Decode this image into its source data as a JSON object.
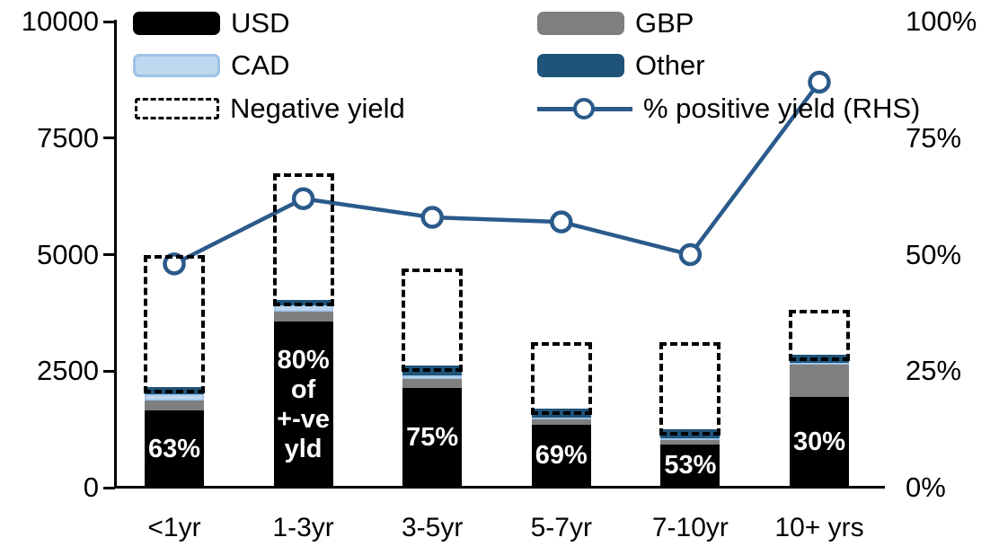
{
  "chart_data": {
    "type": "bar",
    "subtype": "stacked-bars-with-dashed-overlay-and-line",
    "title": "",
    "categories": [
      "<1yr",
      "1-3yr",
      "3-5yr",
      "5-7yr",
      "7-10yr",
      "10+ yrs"
    ],
    "series": [
      {
        "name": "USD",
        "color": "#000000",
        "values": [
          1650,
          3560,
          2140,
          1350,
          930,
          1950
        ]
      },
      {
        "name": "GBP",
        "color": "#7F7F7F",
        "values": [
          210,
          210,
          190,
          120,
          100,
          690
        ]
      },
      {
        "name": "CAD",
        "color": "#BDD7EE",
        "border_color": "#9DC3E6",
        "values": [
          140,
          140,
          80,
          30,
          30,
          40
        ]
      },
      {
        "name": "Other",
        "color": "#1F5379",
        "values": [
          150,
          120,
          210,
          190,
          190,
          180
        ]
      }
    ],
    "negative_yield": {
      "name": "Negative yield",
      "style": "dashed-outline",
      "totals": [
        5000,
        6750,
        4700,
        3120,
        3120,
        3820
      ]
    },
    "line_series": {
      "name": "% positive yield (RHS)",
      "color": "#2A5A8A",
      "marker": "open-circle",
      "values_pct": [
        48,
        62,
        58,
        57,
        50,
        87
      ]
    },
    "bar_labels": [
      "63%",
      "80%\nof\n+-ve\nyld",
      "75%",
      "69%",
      "53%",
      "30%"
    ],
    "left_axis": {
      "ticks": [
        "0",
        "2500",
        "5000",
        "7500",
        "10000"
      ],
      "tick_values": [
        0,
        2500,
        5000,
        7500,
        10000
      ],
      "min": 0,
      "max": 10000
    },
    "right_axis": {
      "ticks": [
        "0%",
        "25%",
        "50%",
        "75%",
        "100%"
      ],
      "tick_values": [
        0,
        25,
        50,
        75,
        100
      ],
      "min": 0,
      "max": 100
    },
    "legend": {
      "col1": [
        {
          "label": "USD",
          "swatch": "usd"
        },
        {
          "label": "CAD",
          "swatch": "cad"
        },
        {
          "label": "Negative yield",
          "swatch": "negative-yield"
        }
      ],
      "col2": [
        {
          "label": "GBP",
          "swatch": "gbp"
        },
        {
          "label": "Other",
          "swatch": "other"
        },
        {
          "label": "% positive yield (RHS)",
          "swatch": "line"
        }
      ]
    },
    "grid": false,
    "legend_position": "top",
    "background": "#FFFFFF"
  }
}
